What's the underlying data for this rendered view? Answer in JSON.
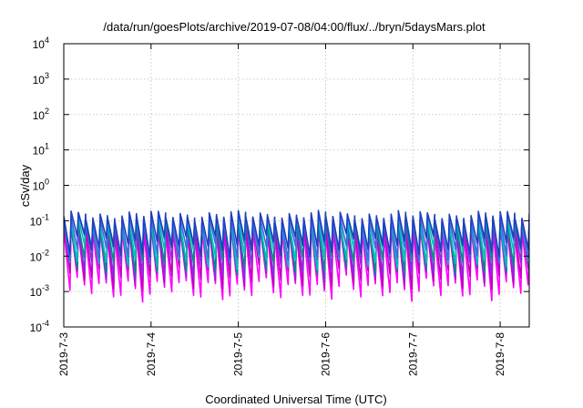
{
  "chart_data": {
    "type": "line",
    "title": "/data/run/goesPlots/archive/2019-07-08/04:00/flux/../bryn/5daysMars.plot",
    "xlabel": "Coordinated Universal Time (UTC)",
    "ylabel": "cSv/day",
    "yscale": "log",
    "ylim": [
      0.0001,
      10000
    ],
    "xlim": [
      "2019-07-03",
      "2019-07-08 08:00"
    ],
    "grid": true,
    "legend": "none",
    "x_ticks": [
      "2019-7-3",
      "2019-7-4",
      "2019-7-5",
      "2019-7-6",
      "2019-7-7",
      "2019-7-8"
    ],
    "y_ticks": [
      {
        "base": "10",
        "exp": "-4"
      },
      {
        "base": "10",
        "exp": "-3"
      },
      {
        "base": "10",
        "exp": "-2"
      },
      {
        "base": "10",
        "exp": "-1"
      },
      {
        "base": "10",
        "exp": "0"
      },
      {
        "base": "10",
        "exp": "1"
      },
      {
        "base": "10",
        "exp": "2"
      },
      {
        "base": "10",
        "exp": "3"
      },
      {
        "base": "10",
        "exp": "4"
      }
    ],
    "sawtooth_period_hours": 2,
    "series": [
      {
        "color": "#ff00ff",
        "peak": 0.05,
        "trough": 0.0015
      },
      {
        "color": "#c000c0",
        "peak": 0.07,
        "trough": 0.003
      },
      {
        "color": "#8a2be2",
        "peak": 0.09,
        "trough": 0.005
      },
      {
        "color": "#008b8b",
        "peak": 0.08,
        "trough": 0.008
      },
      {
        "color": "#00c0c0",
        "peak": 0.1,
        "trough": 0.012
      },
      {
        "color": "#4169e1",
        "peak": 0.12,
        "trough": 0.018
      },
      {
        "color": "#1e3fbf",
        "peak": 0.14,
        "trough": 0.025
      }
    ]
  }
}
